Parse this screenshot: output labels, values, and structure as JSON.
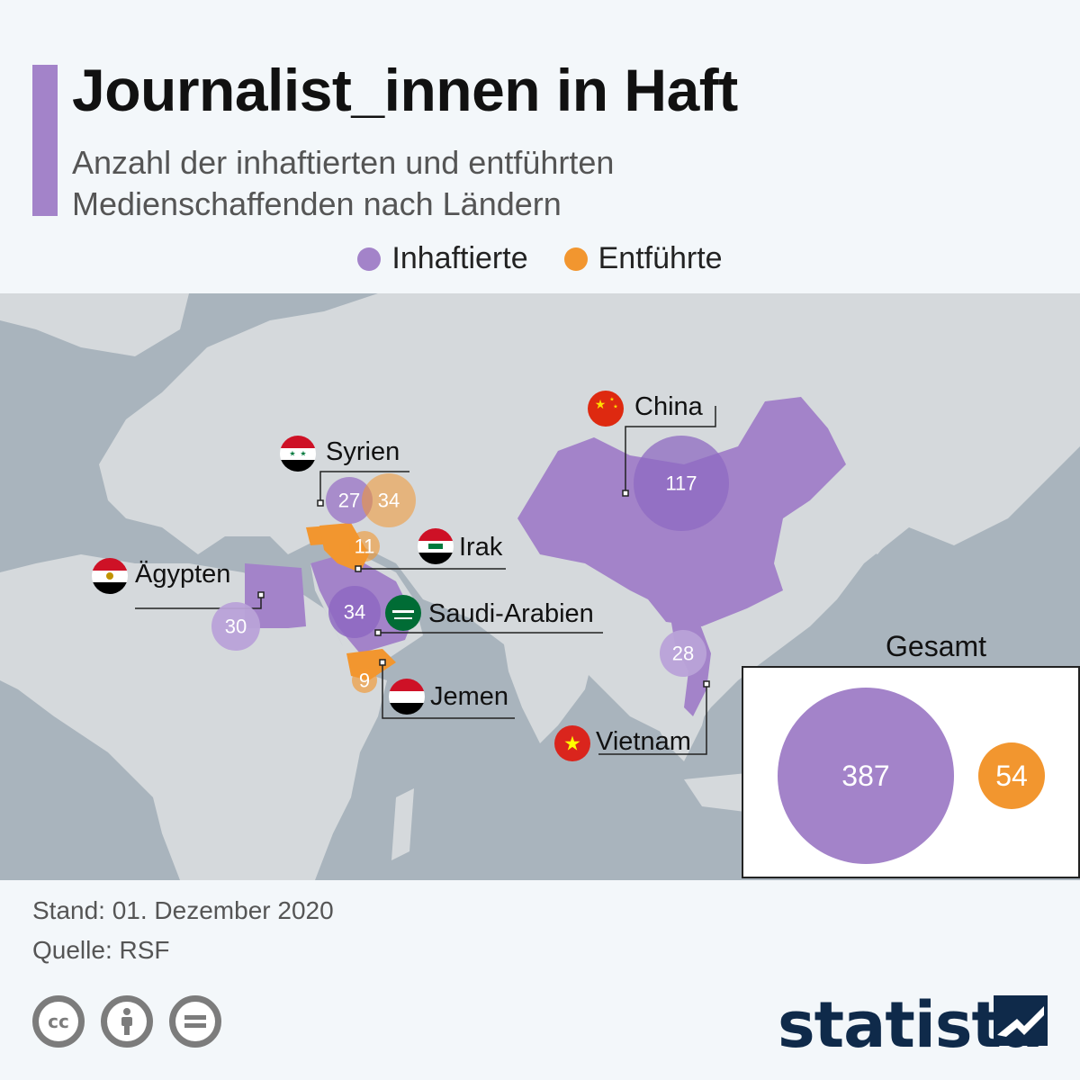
{
  "header": {
    "title": "Journalist_innen in Haft",
    "subtitle_line1": "Anzahl der inhaftierten und entführten",
    "subtitle_line2": "Medienschaffenden nach Ländern"
  },
  "legend": {
    "items": [
      {
        "label": "Inhaftierte",
        "color": "#a383c9"
      },
      {
        "label": "Entführte",
        "color": "#f2962f"
      }
    ]
  },
  "map": {
    "countries": [
      {
        "name": "China",
        "inhaftierte": 117,
        "flag": "china-flag"
      },
      {
        "name": "Syrien",
        "inhaftierte": 27,
        "entfuehrte": 34,
        "flag": "syria-flag"
      },
      {
        "name": "Irak",
        "entfuehrte": 11,
        "flag": "iraq-flag"
      },
      {
        "name": "Ägypten",
        "inhaftierte": 30,
        "flag": "egypt-flag"
      },
      {
        "name": "Saudi-Arabien",
        "inhaftierte": 34,
        "flag": "saudi-arabia-flag"
      },
      {
        "name": "Jemen",
        "entfuehrte": 9,
        "flag": "yemen-flag"
      },
      {
        "name": "Vietnam",
        "inhaftierte": 28,
        "flag": "vietnam-flag"
      }
    ]
  },
  "total": {
    "title": "Gesamt",
    "inhaftierte": 387,
    "entfuehrte": 54
  },
  "footer": {
    "date": "Stand: 01. Dezember 2020",
    "source": "Quelle: RSF"
  },
  "brand": {
    "name": "statista",
    "license_icons": [
      "cc-icon",
      "attribution-icon",
      "no-derivatives-icon"
    ]
  },
  "colors": {
    "inhaftierte": "#a383c9",
    "entfuehrte": "#f2962f",
    "land": "#d5d9dc",
    "sea": "#a9b4bd"
  }
}
